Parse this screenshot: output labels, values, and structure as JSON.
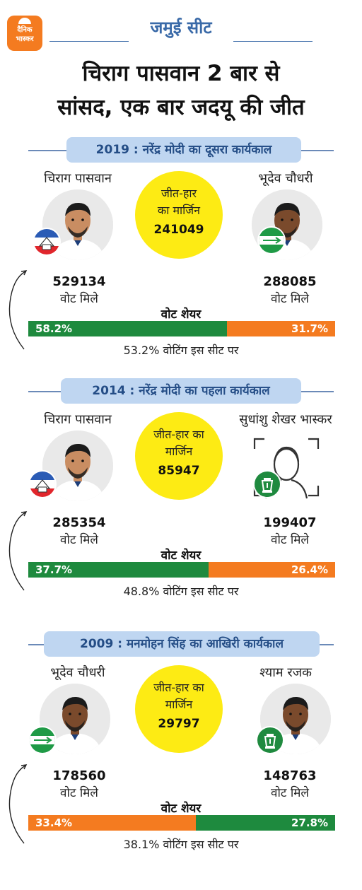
{
  "logo": {
    "line1": "दैनिक",
    "line2": "भास्कर",
    "color": "#f47b20"
  },
  "seat_title": "जमुई सीट",
  "headline": {
    "line1": "चिराग पासवान 2 बार से",
    "line2": "सांसद, एक बार जदयू की जीत"
  },
  "colors": {
    "green": "#1e8a3e",
    "orange": "#f47b20",
    "yellow": "#fdeb14",
    "pill": "#bfd6f1",
    "pill_text": "#244d86"
  },
  "sections": [
    {
      "title": "2019 : नरेंद्र मोदी का दूसरा कार्यकाल",
      "left": {
        "name": "चिराग पासवान",
        "votes": "529134",
        "votes_label": "वोट मिले",
        "party_icon": "ljp-hut-icon",
        "photo": "candidate-photo"
      },
      "right": {
        "name": "भूदेव चौधरी",
        "votes": "288085",
        "votes_label": "वोट मिले",
        "party_icon": "jdu-arrow-icon",
        "photo": "candidate-photo"
      },
      "margin": {
        "line1": "जीत-हार",
        "line2": "का मार्जिन",
        "value": "241049"
      },
      "share_label": "वोट शेयर",
      "bar": {
        "left_pct": "58.2%",
        "right_pct": "31.7%",
        "left_share": 58.2,
        "right_share": 31.7,
        "left_color": "green",
        "right_color": "orange"
      },
      "turnout": "53.2% वोटिंग इस सीट पर"
    },
    {
      "title": "2014 : नरेंद्र मोदी का पहला कार्यकाल",
      "left": {
        "name": "चिराग पासवान",
        "votes": "285354",
        "votes_label": "वोट मिले",
        "party_icon": "ljp-hut-icon",
        "photo": "candidate-photo"
      },
      "right": {
        "name": "सुधांशु शेखर भास्कर",
        "votes": "199407",
        "votes_label": "वोट मिले",
        "party_icon": "rjd-lantern-icon",
        "photo": "face-placeholder-icon"
      },
      "margin": {
        "line1": "जीत-हार का",
        "line2": "मार्जिन",
        "value": "85947"
      },
      "share_label": "वोट शेयर",
      "bar": {
        "left_pct": "37.7%",
        "right_pct": "26.4%",
        "left_share": 37.7,
        "right_share": 26.4,
        "left_color": "green",
        "right_color": "orange"
      },
      "turnout": "48.8% वोटिंग इस सीट पर"
    },
    {
      "title": "2009 : मनमोहन सिंह का आखिरी कार्यकाल",
      "left": {
        "name": "भूदेव चौधरी",
        "votes": "178560",
        "votes_label": "वोट मिले",
        "party_icon": "jdu-arrow-icon",
        "photo": "candidate-photo"
      },
      "right": {
        "name": "श्याम रजक",
        "votes": "148763",
        "votes_label": "वोट मिले",
        "party_icon": "rjd-lantern-icon",
        "photo": "candidate-photo"
      },
      "margin": {
        "line1": "जीत-हार का",
        "line2": "मार्जिन",
        "value": "29797"
      },
      "share_label": "वोट शेयर",
      "bar": {
        "left_pct": "33.4%",
        "right_pct": "27.8%",
        "left_share": 33.4,
        "right_share": 27.8,
        "left_color": "orange",
        "right_color": "green"
      },
      "turnout": "38.1% वोटिंग इस सीट पर"
    }
  ]
}
